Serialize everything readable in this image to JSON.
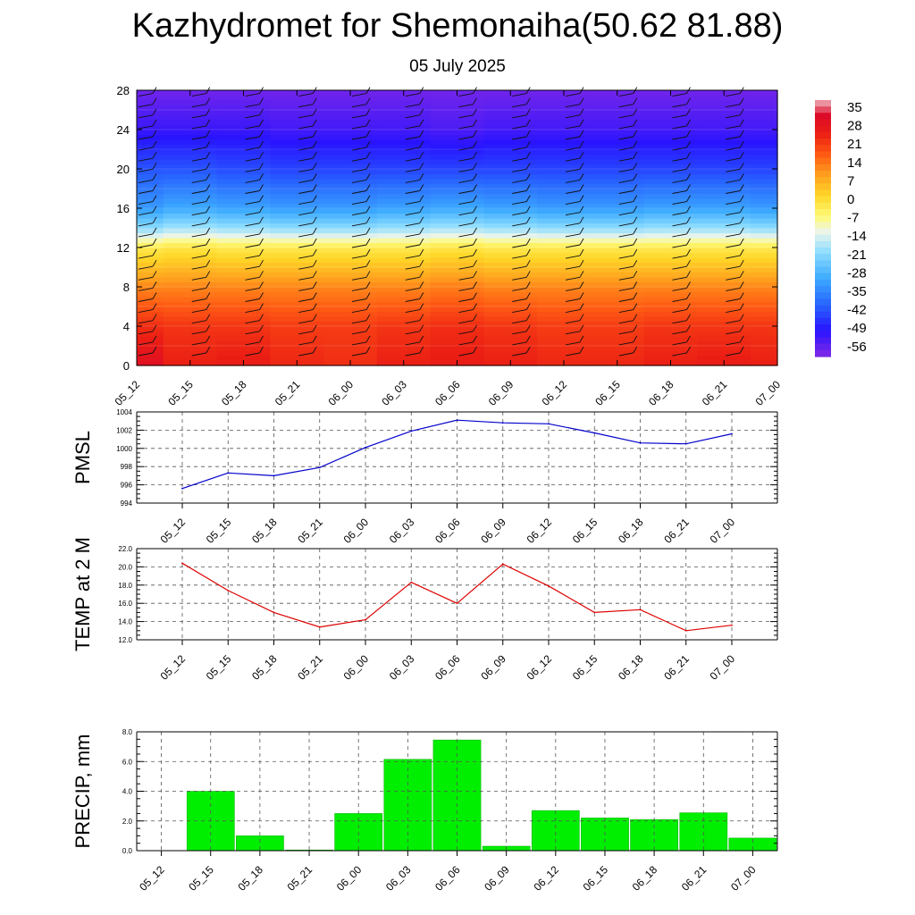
{
  "title": "Kazhydromet for Shemonaiha(50.62 81.88)",
  "subtitle": "05 July 2025",
  "colors": {
    "pmsl_line": "#0000cc",
    "temp_line": "#dd0000",
    "precip_bar": "#00ee00",
    "grid": "#555555"
  },
  "chart_data": [
    {
      "type": "heatmap",
      "variable": "temperature cross-section with wind barbs",
      "x": [
        "05_12",
        "05_15",
        "05_18",
        "05_21",
        "06_00",
        "06_03",
        "06_06",
        "06_09",
        "06_12",
        "06_15",
        "06_18",
        "06_21",
        "07_00"
      ],
      "y_ticks": [
        0,
        4,
        8,
        12,
        16,
        20,
        24,
        28
      ],
      "ylim": [
        0,
        28
      ],
      "colorbar_labels": [
        "35",
        "28",
        "21",
        "14",
        "7",
        "0",
        "-7",
        "-14",
        "-21",
        "-28",
        "-35",
        "-42",
        "-49",
        "-56"
      ],
      "colorbar_range": [
        -60,
        39
      ],
      "rows": [
        {
          "level": 0,
          "values": [
            31,
            26,
            27,
            25,
            24,
            26,
            27,
            26,
            25,
            25,
            26,
            27,
            26
          ]
        },
        {
          "level": 4,
          "values": [
            24,
            23,
            23,
            22,
            22,
            23,
            24,
            23,
            22,
            22,
            23,
            23,
            23
          ]
        },
        {
          "level": 8,
          "values": [
            13,
            13,
            13,
            13,
            13,
            13,
            14,
            13,
            13,
            13,
            13,
            13,
            13
          ]
        },
        {
          "level": 12,
          "values": [
            -2,
            -1,
            -2,
            -2,
            -2,
            -2,
            -1,
            -2,
            -2,
            -2,
            -2,
            -2,
            -2
          ]
        },
        {
          "level": 14,
          "values": [
            -20,
            -18,
            -19,
            -20,
            -20,
            -19,
            -18,
            -19,
            -20,
            -20,
            -19,
            -19,
            -20
          ]
        },
        {
          "level": 16,
          "values": [
            -32,
            -30,
            -31,
            -32,
            -32,
            -31,
            -30,
            -31,
            -32,
            -32,
            -31,
            -31,
            -32
          ]
        },
        {
          "level": 20,
          "values": [
            -42,
            -42,
            -43,
            -44,
            -44,
            -44,
            -44,
            -44,
            -44,
            -44,
            -44,
            -44,
            -44
          ]
        },
        {
          "level": 24,
          "values": [
            -52,
            -52,
            -52,
            -53,
            -53,
            -53,
            -54,
            -53,
            -53,
            -53,
            -53,
            -53,
            -53
          ]
        },
        {
          "level": 28,
          "values": [
            -58,
            -58,
            -58,
            -58,
            -58,
            -58,
            -58,
            -58,
            -58,
            -58,
            -58,
            -58,
            -58
          ]
        }
      ]
    },
    {
      "type": "line",
      "ylabel": "PMSL",
      "x": [
        "05_12",
        "05_15",
        "05_18",
        "05_21",
        "06_00",
        "06_03",
        "06_06",
        "06_09",
        "06_12",
        "06_15",
        "06_18",
        "06_21",
        "07_00"
      ],
      "y": [
        995.6,
        997.3,
        997.0,
        997.9,
        1000.1,
        1001.9,
        1003.1,
        1002.8,
        1002.7,
        1001.7,
        1000.6,
        1000.5,
        1001.6
      ],
      "ylim": [
        994,
        1004
      ],
      "y_ticks": [
        "994",
        "996",
        "998",
        "1000",
        "1002",
        "1004"
      ],
      "grid": true
    },
    {
      "type": "line",
      "ylabel": "TEMP at 2 M",
      "x": [
        "05_12",
        "05_15",
        "05_18",
        "05_21",
        "06_00",
        "06_03",
        "06_06",
        "06_09",
        "06_12",
        "06_15",
        "06_18",
        "06_21",
        "07_00"
      ],
      "y": [
        20.4,
        17.4,
        15.0,
        13.4,
        14.2,
        18.3,
        16.0,
        20.3,
        17.9,
        15.0,
        15.3,
        13.0,
        13.6
      ],
      "ylim": [
        12,
        22
      ],
      "y_ticks": [
        "12.0",
        "14.0",
        "16.0",
        "18.0",
        "20.0",
        "22.0"
      ],
      "grid": true
    },
    {
      "type": "bar",
      "ylabel": "PRECIP, mm",
      "categories": [
        "05_12",
        "05_15",
        "05_18",
        "05_21",
        "06_00",
        "06_03",
        "06_06",
        "06_09",
        "06_12",
        "06_15",
        "06_18",
        "06_21",
        "07_00"
      ],
      "values": [
        0.0,
        4.0,
        1.0,
        0.05,
        2.5,
        6.15,
        7.45,
        0.3,
        2.7,
        2.2,
        2.1,
        2.55,
        0.85
      ],
      "ylim": [
        0,
        8
      ],
      "y_ticks": [
        "0.0",
        "2.0",
        "4.0",
        "6.0",
        "8.0"
      ],
      "grid": true
    }
  ]
}
